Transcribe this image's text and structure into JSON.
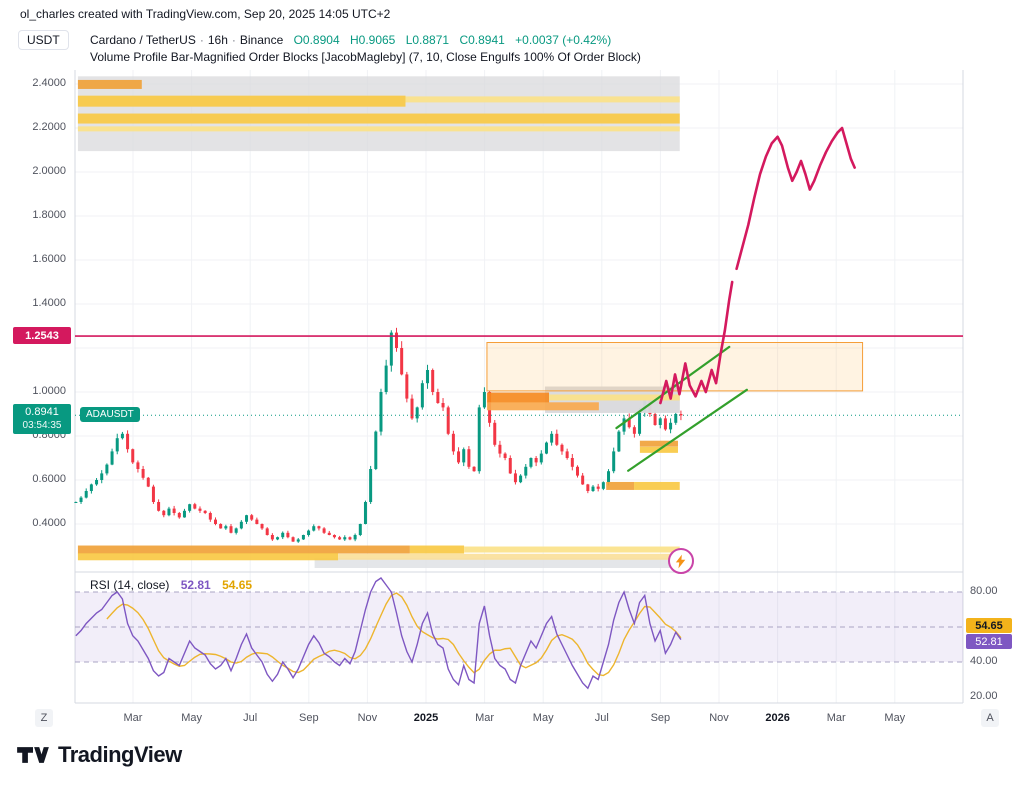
{
  "attribution": "ol_charles created with TradingView.com, Sep 20, 2025 14:05 UTC+2",
  "axis_currency": "USDT",
  "legend": {
    "symbol": "Cardano / TetherUS",
    "interval": "16h",
    "exchange": "Binance",
    "separator": "·",
    "open": "O0.8904",
    "high": "H0.9065",
    "low": "L0.8871",
    "close": "C0.8941",
    "change": "+0.0037 (+0.42%)",
    "indicator": "Volume Profile Bar-Magnified Order Blocks [JacobMagleby] (7, 10, Close Engulfs 100% Of Order Block)"
  },
  "badges": {
    "hline": "1.2543",
    "price": "0.8941",
    "countdown": "03:54:35",
    "symbol_label": "ADAUSDT",
    "rsi_ma": "54.65",
    "rsi_value": "52.81"
  },
  "rsi_legend": {
    "label": "RSI (14, close)",
    "rsi_value": "52.81",
    "ma_value": "54.65"
  },
  "buttons": {
    "z": "Z",
    "a": "A"
  },
  "logo": {
    "text": "TradingView"
  },
  "chart_data": {
    "type": "candlestick",
    "title": "Cardano / TetherUS 16h Binance with Volume Profile Order Blocks and projected path",
    "x_unit": "months since Feb 2024",
    "ylim_main": [
      0.19,
      2.46
    ],
    "colors": {
      "up": "#089981",
      "down": "#f23645",
      "pink": "#d4195e",
      "teal": "#089981",
      "purple": "#7e57c2",
      "yellow": "#edb52e",
      "green": "#33a02c",
      "grid": "#f0f2f5",
      "axis": "#d5d8e0",
      "dash": "#aaa4c4"
    },
    "y_ticks": [
      {
        "v": 2.4,
        "label": "2.4000"
      },
      {
        "v": 2.2,
        "label": "2.2000"
      },
      {
        "v": 2.0,
        "label": "2.0000"
      },
      {
        "v": 1.8,
        "label": "1.8000"
      },
      {
        "v": 1.6,
        "label": "1.6000"
      },
      {
        "v": 1.4,
        "label": "1.4000"
      },
      {
        "v": 1.2,
        "label": ""
      },
      {
        "v": 1.0,
        "label": "1.0000"
      },
      {
        "v": 0.8,
        "label": "0.8000"
      },
      {
        "v": 0.6,
        "label": "0.6000"
      },
      {
        "v": 0.4,
        "label": "0.4000"
      }
    ],
    "x_ticks": [
      {
        "t": 1,
        "label": "Mar"
      },
      {
        "t": 3,
        "label": "May"
      },
      {
        "t": 5,
        "label": "Jul"
      },
      {
        "t": 7,
        "label": "Sep"
      },
      {
        "t": 9,
        "label": "Nov"
      },
      {
        "t": 11,
        "label": "2025",
        "bold": true
      },
      {
        "t": 13,
        "label": "Mar"
      },
      {
        "t": 15,
        "label": "May"
      },
      {
        "t": 17,
        "label": "Jul"
      },
      {
        "t": 19,
        "label": "Sep"
      },
      {
        "t": 21,
        "label": "Nov"
      },
      {
        "t": 23,
        "label": "2026",
        "bold": true
      },
      {
        "t": 25,
        "label": "Mar"
      },
      {
        "t": 27,
        "label": "May"
      }
    ],
    "candles": {
      "t_start": -0.95,
      "t_step": 0.1765,
      "open_first": 0.5,
      "closes": [
        0.5,
        0.52,
        0.55,
        0.58,
        0.6,
        0.63,
        0.67,
        0.73,
        0.79,
        0.81,
        0.74,
        0.68,
        0.65,
        0.61,
        0.57,
        0.5,
        0.46,
        0.44,
        0.47,
        0.45,
        0.43,
        0.46,
        0.49,
        0.47,
        0.46,
        0.45,
        0.42,
        0.4,
        0.38,
        0.39,
        0.36,
        0.38,
        0.41,
        0.44,
        0.42,
        0.4,
        0.38,
        0.35,
        0.33,
        0.34,
        0.36,
        0.34,
        0.32,
        0.33,
        0.35,
        0.37,
        0.39,
        0.38,
        0.36,
        0.35,
        0.34,
        0.33,
        0.34,
        0.33,
        0.35,
        0.4,
        0.5,
        0.65,
        0.82,
        1.0,
        1.12,
        1.27,
        1.2,
        1.08,
        0.97,
        0.88,
        0.93,
        1.04,
        1.1,
        1.0,
        0.95,
        0.93,
        0.81,
        0.73,
        0.68,
        0.74,
        0.66,
        0.64,
        0.93,
        1.0,
        0.86,
        0.76,
        0.72,
        0.7,
        0.63,
        0.59,
        0.62,
        0.66,
        0.7,
        0.68,
        0.72,
        0.77,
        0.81,
        0.76,
        0.73,
        0.7,
        0.66,
        0.62,
        0.58,
        0.55,
        0.57,
        0.56,
        0.59,
        0.64,
        0.73,
        0.82,
        0.88,
        0.84,
        0.81,
        0.91,
        0.97,
        0.9,
        0.85,
        0.88,
        0.83,
        0.86,
        0.9,
        0.894
      ]
    },
    "hline": {
      "price": 1.2543
    },
    "current_price": 0.8941,
    "order_block": {
      "t1": 13.08,
      "t2": 25.9,
      "p1": 1.005,
      "p2": 1.225,
      "fill": "rgba(255,183,77,0.16)",
      "border": "#f59e38"
    },
    "channel": {
      "lines": [
        [
          [
            17.5,
            0.836
          ],
          [
            21.35,
            1.205
          ]
        ],
        [
          [
            17.9,
            0.642
          ],
          [
            21.95,
            1.01
          ]
        ]
      ],
      "width": 2.2
    },
    "projection": {
      "width": 2.6,
      "segments": [
        [
          [
            19.0,
            0.95
          ],
          [
            19.2,
            1.05
          ],
          [
            19.35,
            0.97
          ],
          [
            19.5,
            1.08
          ],
          [
            19.65,
            0.99
          ],
          [
            19.85,
            1.13
          ],
          [
            20.0,
            1.03
          ],
          [
            20.2,
            0.98
          ],
          [
            20.4,
            1.05
          ],
          [
            20.55,
            1.0
          ],
          [
            20.75,
            1.1
          ],
          [
            20.9,
            1.04
          ],
          [
            21.05,
            1.17
          ],
          [
            21.2,
            1.28
          ],
          [
            21.35,
            1.42
          ],
          [
            21.45,
            1.5
          ]
        ],
        [
          [
            21.6,
            1.56
          ],
          [
            21.8,
            1.66
          ],
          [
            22.0,
            1.76
          ],
          [
            22.2,
            1.88
          ],
          [
            22.4,
            1.99
          ],
          [
            22.6,
            2.07
          ],
          [
            22.8,
            2.13
          ],
          [
            23.0,
            2.16
          ],
          [
            23.15,
            2.12
          ],
          [
            23.35,
            2.02
          ],
          [
            23.5,
            1.96
          ],
          [
            23.65,
            2.0
          ],
          [
            23.8,
            2.05
          ],
          [
            23.95,
            1.99
          ],
          [
            24.1,
            1.92
          ],
          [
            24.25,
            1.96
          ],
          [
            24.45,
            2.03
          ],
          [
            24.65,
            2.09
          ],
          [
            24.85,
            2.14
          ],
          [
            25.05,
            2.18
          ],
          [
            25.2,
            2.2
          ],
          [
            25.35,
            2.13
          ],
          [
            25.5,
            2.06
          ],
          [
            25.63,
            2.02
          ]
        ]
      ]
    },
    "profile": {
      "blocks": [
        {
          "t1": -0.88,
          "t2": 19.66,
          "p1": 2.095,
          "p2": 2.435,
          "c": "#d9dadc",
          "o": 0.75
        },
        {
          "t1": 15.06,
          "t2": 19.66,
          "p1": 0.905,
          "p2": 1.025,
          "c": "#d9dadc",
          "o": 0.8
        },
        {
          "t1": 7.2,
          "t2": 19.66,
          "p1": 0.2,
          "p2": 0.245,
          "c": "#e0e1e4",
          "o": 0.6
        }
      ],
      "bars": [
        {
          "t1": -0.88,
          "t2": 1.3,
          "p": 2.398,
          "h": 9,
          "c": "#f0a23a"
        },
        {
          "t1": -0.88,
          "t2": 10.3,
          "p": 2.322,
          "h": 11,
          "c": "#f8c944"
        },
        {
          "t1": 10.3,
          "t2": 19.66,
          "p": 2.33,
          "h": 6,
          "c": "#fbe289"
        },
        {
          "t1": -0.88,
          "t2": 19.66,
          "p": 2.243,
          "h": 10,
          "c": "#f8c944"
        },
        {
          "t1": -0.88,
          "t2": 19.66,
          "p": 2.196,
          "h": 5,
          "c": "#fbe289"
        },
        {
          "t1": 13.08,
          "t2": 15.2,
          "p": 0.975,
          "h": 10,
          "c": "#f58a1f"
        },
        {
          "t1": 13.08,
          "t2": 16.9,
          "p": 0.935,
          "h": 8,
          "c": "#f8a94e"
        },
        {
          "t1": 15.2,
          "t2": 19.66,
          "p": 0.975,
          "h": 6,
          "c": "#fbe289"
        },
        {
          "t1": 18.3,
          "t2": 19.6,
          "p": 0.765,
          "h": 6,
          "c": "#f0a23a"
        },
        {
          "t1": 18.3,
          "t2": 19.6,
          "p": 0.737,
          "h": 6,
          "c": "#f8c944"
        },
        {
          "t1": 17.15,
          "t2": 18.1,
          "p": 0.573,
          "h": 8,
          "c": "#f0a23a"
        },
        {
          "t1": 18.1,
          "t2": 19.66,
          "p": 0.573,
          "h": 8,
          "c": "#f8c944"
        },
        {
          "t1": -0.88,
          "t2": 10.45,
          "p": 0.284,
          "h": 8,
          "c": "#f0a23a"
        },
        {
          "t1": 10.45,
          "t2": 12.3,
          "p": 0.284,
          "h": 8,
          "c": "#f8c944"
        },
        {
          "t1": 12.3,
          "t2": 19.66,
          "p": 0.284,
          "h": 6,
          "c": "#fbe289"
        },
        {
          "t1": -0.88,
          "t2": 8.0,
          "p": 0.251,
          "h": 7,
          "c": "#f8c944"
        },
        {
          "t1": 8.0,
          "t2": 19.66,
          "p": 0.251,
          "h": 6,
          "c": "#fae09a"
        }
      ]
    },
    "rsi": {
      "band": [
        40,
        80
      ],
      "dashed_levels": [
        80,
        60,
        40
      ],
      "ticks": [
        {
          "v": 80,
          "label": "80.00"
        },
        {
          "v": 40,
          "label": "40.00"
        },
        {
          "v": 20,
          "label": "20.00"
        }
      ],
      "ma_period": 7,
      "values": [
        55,
        58,
        62,
        65,
        68,
        70,
        74,
        78,
        80,
        76,
        62,
        55,
        52,
        47,
        42,
        35,
        32,
        34,
        42,
        40,
        38,
        45,
        52,
        48,
        46,
        44,
        39,
        36,
        38,
        42,
        35,
        42,
        50,
        56,
        48,
        44,
        40,
        33,
        29,
        33,
        40,
        36,
        31,
        36,
        43,
        50,
        55,
        51,
        45,
        43,
        40,
        38,
        42,
        39,
        46,
        58,
        70,
        80,
        86,
        88,
        84,
        80,
        68,
        55,
        46,
        40,
        50,
        62,
        68,
        56,
        50,
        48,
        36,
        30,
        27,
        38,
        30,
        28,
        62,
        72,
        55,
        42,
        38,
        36,
        30,
        28,
        38,
        45,
        52,
        48,
        55,
        62,
        66,
        56,
        50,
        44,
        38,
        33,
        28,
        25,
        32,
        30,
        40,
        50,
        64,
        74,
        80,
        70,
        62,
        74,
        78,
        62,
        52,
        58,
        45,
        50,
        57,
        52.81
      ]
    }
  }
}
